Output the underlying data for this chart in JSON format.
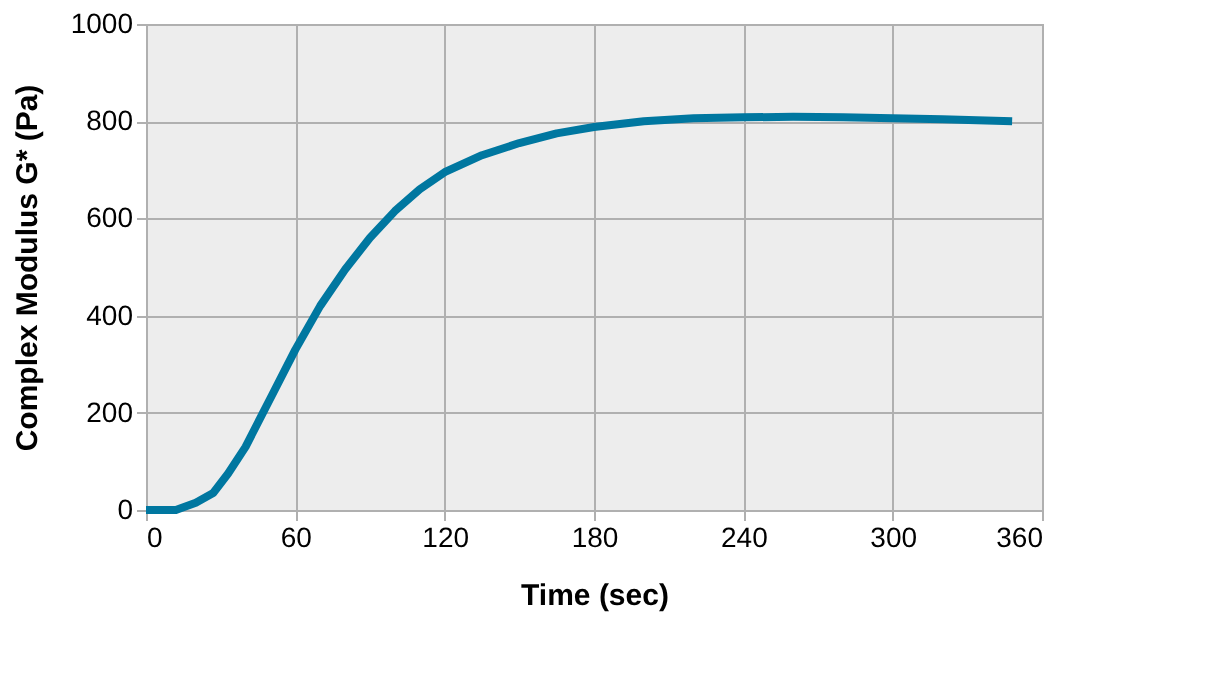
{
  "chart_data": {
    "type": "line",
    "xlabel": "Time (sec)",
    "ylabel": "Complex Modulus G* (Pa)",
    "series": [
      {
        "color": "#0077a0",
        "x": [
          0,
          12,
          20,
          27,
          33,
          40,
          50,
          60,
          70,
          80,
          90,
          100,
          110,
          120,
          135,
          150,
          165,
          180,
          200,
          220,
          240,
          260,
          280,
          300,
          320,
          348
        ],
        "values": [
          0,
          0,
          15,
          35,
          75,
          130,
          230,
          330,
          420,
          495,
          560,
          615,
          660,
          695,
          730,
          755,
          775,
          788,
          800,
          806,
          808,
          809,
          808,
          806,
          804,
          800
        ]
      }
    ],
    "xlim": [
      0,
      360
    ],
    "xticks": [
      0,
      60,
      120,
      180,
      240,
      300,
      360
    ],
    "ylim": [
      0,
      1000
    ],
    "yticks": [
      0,
      200,
      400,
      600,
      800,
      1000
    ],
    "grid": true,
    "marker": "none",
    "line_style": "solid"
  }
}
